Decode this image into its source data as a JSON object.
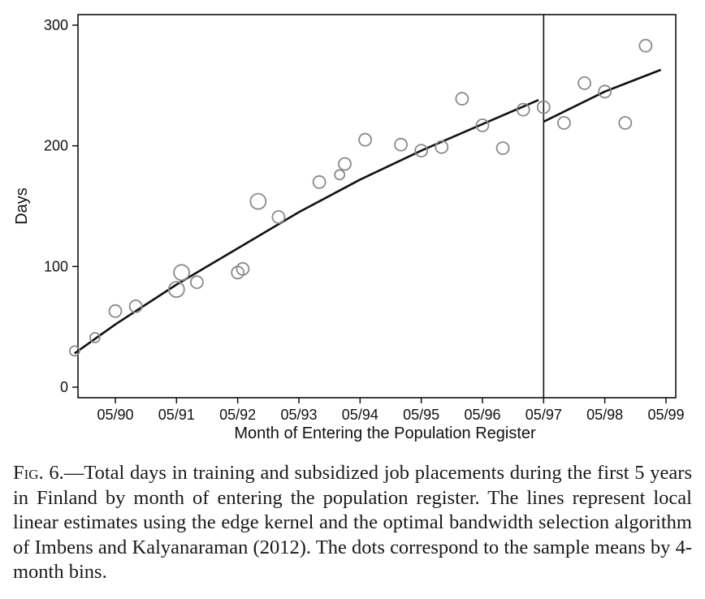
{
  "chart_data": {
    "type": "scatter",
    "title": "",
    "xlabel": "Month of Entering the Population Register",
    "ylabel": "Days",
    "ylim": [
      -10,
      310
    ],
    "xlim": [
      "1989-09",
      "1999-05"
    ],
    "x_ticks": [
      "05/90",
      "05/91",
      "05/92",
      "05/93",
      "05/94",
      "05/95",
      "05/96",
      "05/97",
      "05/98",
      "05/99"
    ],
    "y_ticks": [
      0,
      100,
      200,
      300
    ],
    "grid": false,
    "cutoff": "05/97",
    "series": [
      {
        "type": "scatter",
        "marker": "hollow-circle",
        "sized_by_bin_count": true,
        "points": [
          {
            "x": "1989-09",
            "y": 30,
            "size": "small"
          },
          {
            "x": "1990-01",
            "y": 41,
            "size": "small"
          },
          {
            "x": "1990-05",
            "y": 63,
            "size": "medium"
          },
          {
            "x": "1990-09",
            "y": 67,
            "size": "medium"
          },
          {
            "x": "1991-05",
            "y": 81,
            "size": "large"
          },
          {
            "x": "1991-06",
            "y": 95,
            "size": "large"
          },
          {
            "x": "1991-09",
            "y": 87,
            "size": "medium"
          },
          {
            "x": "1992-05",
            "y": 95,
            "size": "medium"
          },
          {
            "x": "1992-06",
            "y": 98,
            "size": "medium"
          },
          {
            "x": "1992-09",
            "y": 154,
            "size": "large"
          },
          {
            "x": "1993-01",
            "y": 141,
            "size": "medium"
          },
          {
            "x": "1993-09",
            "y": 170,
            "size": "medium"
          },
          {
            "x": "1994-01",
            "y": 176,
            "size": "small"
          },
          {
            "x": "1994-02",
            "y": 185,
            "size": "medium"
          },
          {
            "x": "1994-06",
            "y": 205,
            "size": "medium"
          },
          {
            "x": "1995-01",
            "y": 201,
            "size": "medium"
          },
          {
            "x": "1995-05",
            "y": 196,
            "size": "medium"
          },
          {
            "x": "1995-09",
            "y": 199,
            "size": "medium"
          },
          {
            "x": "1996-01",
            "y": 239,
            "size": "medium"
          },
          {
            "x": "1996-05",
            "y": 217,
            "size": "medium"
          },
          {
            "x": "1996-09",
            "y": 198,
            "size": "medium"
          },
          {
            "x": "1997-01",
            "y": 230,
            "size": "medium"
          },
          {
            "x": "1997-05",
            "y": 232,
            "size": "medium"
          },
          {
            "x": "1997-09",
            "y": 219,
            "size": "medium"
          },
          {
            "x": "1998-01",
            "y": 252,
            "size": "medium"
          },
          {
            "x": "1998-05",
            "y": 245,
            "size": "medium"
          },
          {
            "x": "1998-09",
            "y": 219,
            "size": "medium"
          },
          {
            "x": "1999-01",
            "y": 283,
            "size": "medium"
          }
        ]
      },
      {
        "type": "line",
        "segment": "left of cutoff",
        "points": [
          {
            "x": "1989-09",
            "y": 28
          },
          {
            "x": "1990-05",
            "y": 52
          },
          {
            "x": "1991-05",
            "y": 85
          },
          {
            "x": "1992-05",
            "y": 115
          },
          {
            "x": "1993-05",
            "y": 145
          },
          {
            "x": "1994-05",
            "y": 172
          },
          {
            "x": "1995-05",
            "y": 196
          },
          {
            "x": "1996-05",
            "y": 218
          },
          {
            "x": "1997-04",
            "y": 238
          }
        ]
      },
      {
        "type": "line",
        "segment": "right of cutoff",
        "points": [
          {
            "x": "1997-05",
            "y": 220
          },
          {
            "x": "1998-05",
            "y": 245
          },
          {
            "x": "1999-04",
            "y": 263
          }
        ]
      }
    ]
  },
  "caption": {
    "label": "Fig. 6.",
    "text": "—Total days in training and subsidized job placements during the first 5 years in Finland by month of entering the population register. The lines represent local linear estimates using the edge kernel and the optimal bandwidth selection algorithm of Imbens and Kalyanaraman (2012). The dots correspond to the sample means by 4-month bins."
  }
}
